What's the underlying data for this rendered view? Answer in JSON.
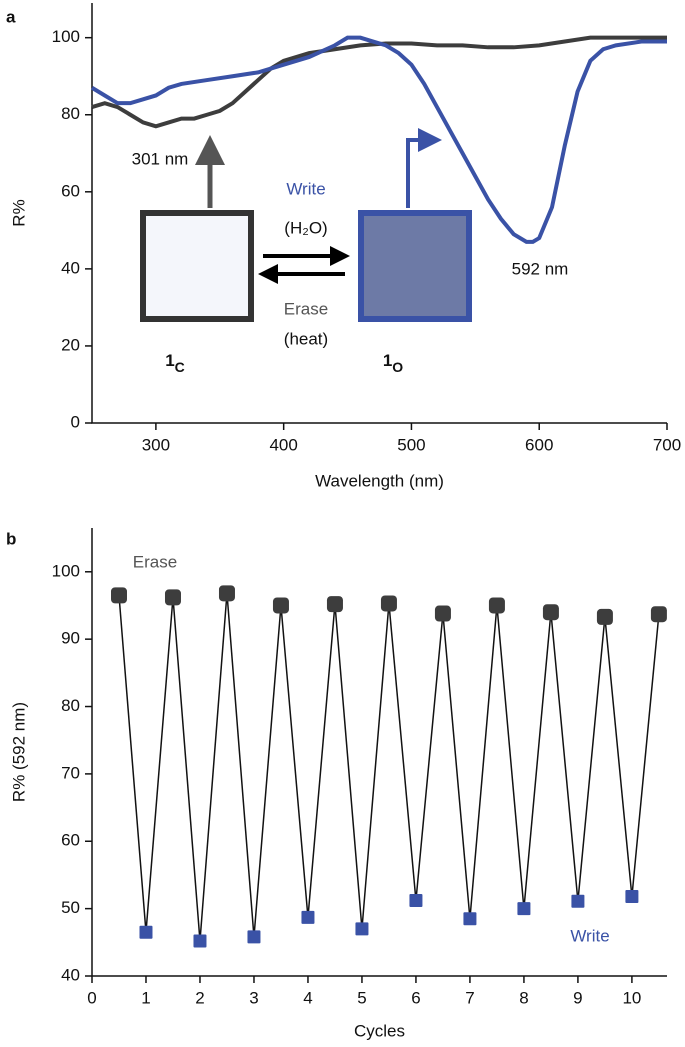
{
  "chart_data": [
    {
      "type": "line",
      "panel": "a",
      "xlabel": "Wavelength (nm)",
      "ylabel": "R%",
      "xlim": [
        250,
        700
      ],
      "ylim": [
        0,
        109
      ],
      "xticks": [
        300,
        400,
        500,
        600,
        700
      ],
      "yticks": [
        0,
        20,
        40,
        60,
        80,
        100
      ],
      "series": [
        {
          "color": "#3d3d3d",
          "x": [
            250,
            260,
            270,
            280,
            290,
            300,
            310,
            320,
            330,
            340,
            350,
            360,
            370,
            380,
            390,
            400,
            420,
            440,
            460,
            480,
            500,
            520,
            540,
            560,
            580,
            600,
            620,
            640,
            660,
            680,
            700
          ],
          "values": [
            82,
            83,
            82,
            80,
            78,
            77,
            78,
            79,
            79,
            80,
            81,
            83,
            86,
            89,
            92,
            94,
            96,
            97,
            98,
            98.5,
            98.5,
            98,
            98,
            97.5,
            97.5,
            98,
            99,
            100,
            100,
            100,
            100
          ]
        },
        {
          "color": "#3a52a6",
          "x": [
            250,
            260,
            270,
            280,
            290,
            300,
            310,
            320,
            340,
            360,
            380,
            400,
            420,
            440,
            450,
            460,
            470,
            480,
            490,
            500,
            510,
            520,
            530,
            540,
            550,
            560,
            570,
            580,
            590,
            595,
            600,
            610,
            620,
            630,
            640,
            650,
            660,
            680,
            700
          ],
          "values": [
            87,
            85,
            83,
            83,
            84,
            85,
            87,
            88,
            89,
            90,
            91,
            93,
            95,
            98,
            100,
            100,
            99,
            98,
            96,
            93,
            88,
            82,
            76,
            70,
            64,
            58,
            53,
            49,
            47,
            47,
            48,
            56,
            72,
            86,
            94,
            97,
            98,
            99,
            99
          ]
        }
      ],
      "annotations": [
        "301 nm",
        "592 nm",
        "Write",
        "(H₂O)",
        "Erase",
        "(heat)"
      ],
      "compound_labels": [
        {
          "main": "1",
          "sub": "C"
        },
        {
          "main": "1",
          "sub": "O"
        }
      ]
    },
    {
      "type": "scatter",
      "panel": "b",
      "xlabel": "Cycles",
      "ylabel": "R% (592 nm)",
      "xlim": [
        0,
        10.65
      ],
      "ylim": [
        40,
        106.5
      ],
      "xticks": [
        0,
        1,
        2,
        3,
        4,
        5,
        6,
        7,
        8,
        9,
        10
      ],
      "yticks": [
        40,
        50,
        60,
        70,
        80,
        90,
        100
      ],
      "series": [
        {
          "name": "Erase",
          "color": "#3d3d3d",
          "x": [
            0.5,
            1.5,
            2.5,
            3.5,
            4.5,
            5.5,
            6.5,
            7.5,
            8.5,
            9.5,
            10.5
          ],
          "values": [
            96.5,
            96.2,
            96.8,
            95,
            95.2,
            95.3,
            93.8,
            95,
            94,
            93.3,
            93.7
          ]
        },
        {
          "name": "Write",
          "color": "#3a52a6",
          "x": [
            1,
            2,
            3,
            4,
            5,
            6,
            7,
            8,
            9,
            10
          ],
          "values": [
            46.5,
            45.2,
            45.8,
            48.7,
            47,
            51.2,
            48.5,
            50,
            51.1,
            51.8
          ]
        }
      ]
    }
  ]
}
